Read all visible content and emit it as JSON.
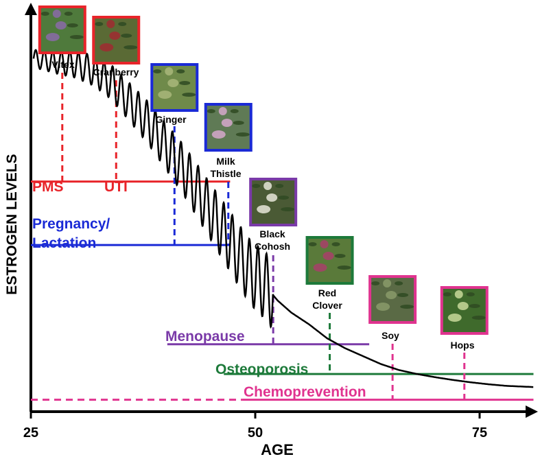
{
  "chart_data": {
    "type": "line",
    "title": "",
    "xlabel": "AGE",
    "ylabel": "ESTROGEN LEVELS",
    "xlim": [
      25,
      81
    ],
    "ylim": [
      0,
      100
    ],
    "x_ticks": [
      {
        "value": 25,
        "label": "25"
      },
      {
        "value": 50,
        "label": "50"
      },
      {
        "value": 75,
        "label": "75"
      }
    ],
    "grid": false,
    "series": [
      {
        "color": "#000000",
        "style": "oscillating decline then smooth decay",
        "points": [
          [
            25.3,
            89
          ],
          [
            28,
            88
          ],
          [
            30,
            87.5
          ],
          [
            32,
            86
          ],
          [
            34,
            83
          ],
          [
            36,
            78
          ],
          [
            38,
            73
          ],
          [
            40,
            67
          ],
          [
            42,
            61
          ],
          [
            44,
            54
          ],
          [
            46,
            47
          ],
          [
            48,
            40
          ],
          [
            49.5,
            35
          ],
          [
            51,
            32
          ],
          [
            52.5,
            28
          ],
          [
            54,
            25
          ],
          [
            56,
            22
          ],
          [
            58,
            18.5
          ],
          [
            60,
            16
          ],
          [
            62,
            14
          ],
          [
            64,
            12
          ],
          [
            66,
            10.5
          ],
          [
            68,
            9.5
          ],
          [
            70,
            8.7
          ],
          [
            72,
            8
          ],
          [
            74,
            7.4
          ],
          [
            76,
            6.9
          ],
          [
            78,
            6.5
          ],
          [
            80,
            6.3
          ],
          [
            81,
            6.2
          ]
        ]
      }
    ],
    "conditions": [
      {
        "label": "PMS",
        "color": "#e8242a",
        "y": 58,
        "x_start": 25,
        "x_end": 47.2
      },
      {
        "label": "UTI",
        "color": "#e8242a",
        "y": 58,
        "x_start": 25,
        "x_end": 47.2
      },
      {
        "label": "Pregnancy/\nLactation",
        "color": "#1a2ad6",
        "y": 42,
        "x_start": 25,
        "x_end": 47.2
      },
      {
        "label": "Menopause",
        "color": "#7a3aa8",
        "y": 17,
        "x_start": 40.2,
        "x_end": 62.7
      },
      {
        "label": "Osteoporosis",
        "color": "#1d7a3a",
        "y": 9.5,
        "x_start": 46.5,
        "x_end": 81
      },
      {
        "label": "Chemoprevention",
        "color": "#e0338f",
        "y": 3,
        "x_start": 25,
        "x_end": 81,
        "dashed_until": 48.5
      }
    ],
    "herbs": [
      {
        "name": "Vitex",
        "age": 28.5,
        "color": "#e8242a",
        "y_bottom": 58
      },
      {
        "name": "Cranberry",
        "age": 34.5,
        "color": "#e8242a",
        "y_bottom": 58
      },
      {
        "name": "Ginger",
        "age": 41,
        "color": "#1a2ad6",
        "y_bottom": 42
      },
      {
        "name": "Milk Thistle",
        "age": 47,
        "color": "#1a2ad6",
        "y_bottom": 42
      },
      {
        "name": "Black Cohosh",
        "age": 52,
        "color": "#7a3aa8",
        "y_bottom": 17
      },
      {
        "name": "Red Clover",
        "age": 58.3,
        "color": "#1d7a3a",
        "y_bottom": 9.5
      },
      {
        "name": "Soy",
        "age": 65.3,
        "color": "#e0338f",
        "y_bottom": 3
      },
      {
        "name": "Hops",
        "age": 73.3,
        "color": "#e0338f",
        "y_bottom": 3
      }
    ]
  },
  "labels": {
    "vitex": "Vitex",
    "cranberry": "Cranberry",
    "ginger": "Ginger",
    "milk1": "Milk",
    "milk2": "Thistle",
    "black1": "Black",
    "black2": "Cohosh",
    "red1": "Red",
    "red2": "Clover",
    "soy": "Soy",
    "hops": "Hops",
    "pms": "PMS",
    "uti": "UTI",
    "preg1": "Pregnancy/",
    "preg2": "Lactation",
    "menopause": "Menopause",
    "osteoporosis": "Osteoporosis",
    "chemoprevention": "Chemoprevention"
  },
  "thumb_colors": {
    "vitex": [
      "#4f7a3c",
      "#8a6aa8"
    ],
    "cranberry": [
      "#5a6a35",
      "#a02a30"
    ],
    "ginger": [
      "#6f8a4a",
      "#a9b67a"
    ],
    "milk": [
      "#5f7a55",
      "#d6a8cc"
    ],
    "black": [
      "#4a5a35",
      "#e6e6d8"
    ],
    "red": [
      "#5a7a3a",
      "#a8406a"
    ],
    "soy": [
      "#5a6a45",
      "#8a9a6a"
    ],
    "hops": [
      "#3f6a2c",
      "#c8d89a"
    ]
  }
}
